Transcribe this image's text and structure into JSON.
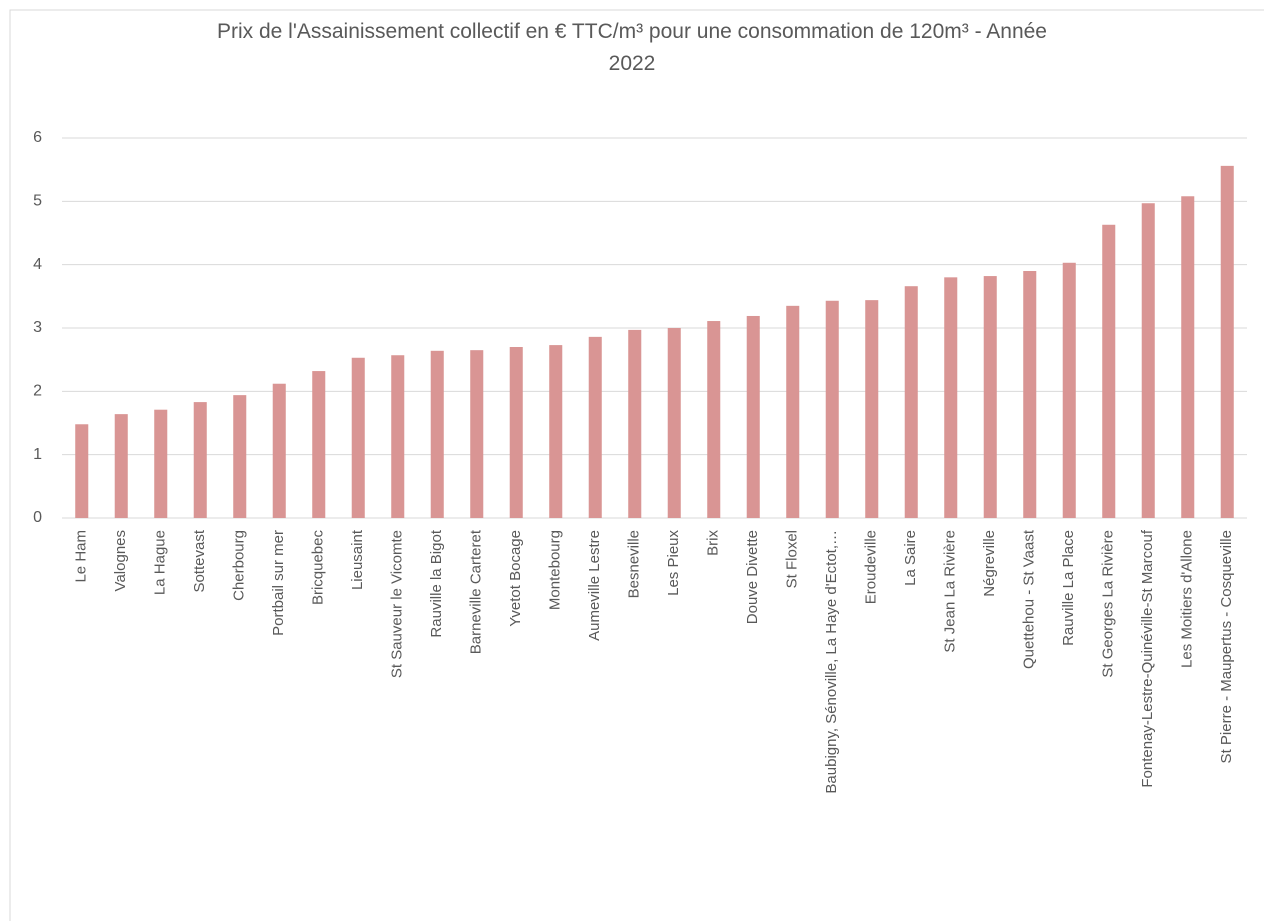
{
  "chart_data": {
    "type": "bar",
    "title": "Prix de l'Assainissement collectif en € TTC/m³ pour une consommation de 120m³ - Année 2022",
    "categories": [
      "Le Ham",
      "Valognes",
      "La Hague",
      "Sottevast",
      "Cherbourg",
      "Portbail sur mer",
      "Bricquebec",
      "Lieusaint",
      "St Sauveur le Vicomte",
      "Rauville la Bigot",
      "Barneville Carteret",
      "Yvetot Bocage",
      "Montebourg",
      "Aumeville Lestre",
      "Besneville",
      "Les Pieux",
      "Brix",
      "Douve Divette",
      "St Floxel",
      "Baubigny, Sénoville, La Haye d'Ectot,…",
      "Eroudeville",
      "La Saire",
      "St Jean La Rivière",
      "Négreville",
      "Quettehou - St Vaast",
      "Rauville La Place",
      "St Georges La Rivière",
      "Fontenay-Lestre-Quinéville-St Marcouf",
      "Les Moitiers d'Allone",
      "St Pierre - Maupertus - Cosqueville"
    ],
    "values": [
      1.48,
      1.64,
      1.71,
      1.83,
      1.94,
      2.12,
      2.32,
      2.53,
      2.57,
      2.64,
      2.65,
      2.7,
      2.73,
      2.86,
      2.97,
      3.0,
      3.11,
      3.19,
      3.35,
      3.43,
      3.44,
      3.66,
      3.8,
      3.82,
      3.9,
      4.03,
      4.63,
      4.97,
      5.08,
      5.56
    ],
    "color": "#d99594",
    "ylim": [
      0,
      6
    ],
    "yticks": [
      0,
      1,
      2,
      3,
      4,
      5,
      6
    ],
    "grid": true
  }
}
